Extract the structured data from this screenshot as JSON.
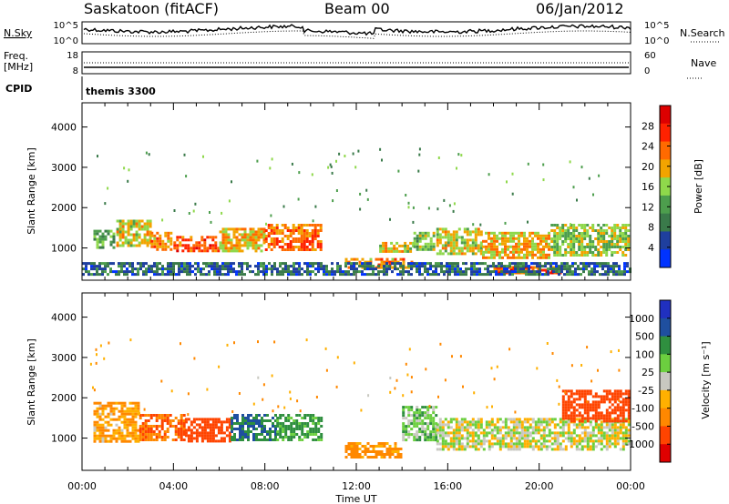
{
  "header": {
    "station": "Saskatoon (fitACF)",
    "beam": "Beam 00",
    "date": "06/Jan/2012"
  },
  "noise_panel": {
    "left_label": "N.Sky",
    "right_label": "N.Search",
    "left_ticks": [
      "10^5",
      "10^0"
    ],
    "right_ticks": [
      "10^5",
      "10^0"
    ]
  },
  "freq_panel": {
    "left_label_1": "Freq.",
    "left_label_2": "[MHz]",
    "right_label": "Nave",
    "left_ticks": [
      "18",
      "8"
    ],
    "right_ticks": [
      "60",
      "0"
    ]
  },
  "cpid_panel": {
    "label": "CPID",
    "program": "themis 3300"
  },
  "x_axis": {
    "title": "Time UT",
    "tick_labels": [
      "00:00",
      "04:00",
      "08:00",
      "12:00",
      "16:00",
      "20:00",
      "00:00"
    ]
  },
  "colors": {
    "power": [
      "#0033ff",
      "#1f3f9e",
      "#3a7a4a",
      "#4d9e4d",
      "#8fd84b",
      "#f2a400",
      "#ff6a00",
      "#ff2200",
      "#dd0000"
    ],
    "velocity": [
      "#e00000",
      "#ff4400",
      "#ff8800",
      "#ffb000",
      "#c8c8c0",
      "#6ccf3f",
      "#2f8f3f",
      "#1f4f9f",
      "#2030c0"
    ]
  },
  "chart_data": [
    {
      "type": "heatmap",
      "name": "power",
      "xlabel": "",
      "ylabel": "Slant Range [km]",
      "xlim": [
        0,
        24
      ],
      "ylim": [
        200,
        4600
      ],
      "y_ticks": [
        1000,
        2000,
        3000,
        4000
      ],
      "colorbar": {
        "label": "Power [dB]",
        "range": [
          0,
          32
        ],
        "ticks": [
          4,
          8,
          12,
          16,
          20,
          24,
          28
        ]
      },
      "bands": [
        {
          "t": [
            0.5,
            1.5
          ],
          "r": [
            950,
            1450
          ],
          "v": 12
        },
        {
          "t": [
            1.5,
            3.0
          ],
          "r": [
            1000,
            1700
          ],
          "v": 18
        },
        {
          "t": [
            3.0,
            4.0
          ],
          "r": [
            900,
            1400
          ],
          "v": 22
        },
        {
          "t": [
            4.0,
            6.0
          ],
          "r": [
            900,
            1300
          ],
          "v": 26
        },
        {
          "t": [
            6.0,
            8.0
          ],
          "r": [
            900,
            1500
          ],
          "v": 20
        },
        {
          "t": [
            8.0,
            10.5
          ],
          "r": [
            900,
            1600
          ],
          "v": 24
        },
        {
          "t": [
            11.5,
            14.5
          ],
          "r": [
            500,
            750
          ],
          "v": 22
        },
        {
          "t": [
            13.0,
            14.5
          ],
          "r": [
            850,
            1150
          ],
          "v": 18
        },
        {
          "t": [
            14.5,
            15.5
          ],
          "r": [
            900,
            1400
          ],
          "v": 14
        },
        {
          "t": [
            15.5,
            17.5
          ],
          "r": [
            800,
            1500
          ],
          "v": 18
        },
        {
          "t": [
            17.5,
            20.5
          ],
          "r": [
            700,
            1400
          ],
          "v": 20
        },
        {
          "t": [
            18.0,
            21.0
          ],
          "r": [
            350,
            550
          ],
          "v": 26
        },
        {
          "t": [
            20.5,
            24.0
          ],
          "r": [
            800,
            1600
          ],
          "v": 16
        },
        {
          "t": [
            0.0,
            24.0
          ],
          "r": [
            300,
            650
          ],
          "v": 6
        }
      ]
    },
    {
      "type": "heatmap",
      "name": "velocity",
      "xlabel": "Time UT",
      "ylabel": "Slant Range [km]",
      "xlim": [
        0,
        24
      ],
      "ylim": [
        200,
        4600
      ],
      "y_ticks": [
        1000,
        2000,
        3000,
        4000
      ],
      "colorbar": {
        "label": "Velocity [m s⁻¹]",
        "ticks": [
          "1000",
          "500",
          "100",
          "25",
          "-25",
          "-100",
          "-500",
          "-1000"
        ]
      },
      "bands": [
        {
          "t": [
            0.5,
            2.5
          ],
          "r": [
            900,
            1900
          ],
          "v": -100
        },
        {
          "t": [
            2.5,
            4.5
          ],
          "r": [
            900,
            1600
          ],
          "v": -300
        },
        {
          "t": [
            4.5,
            6.5
          ],
          "r": [
            900,
            1500
          ],
          "v": -400
        },
        {
          "t": [
            6.5,
            8.5
          ],
          "r": [
            900,
            1600
          ],
          "v": 300
        },
        {
          "t": [
            8.5,
            10.5
          ],
          "r": [
            900,
            1600
          ],
          "v": 150
        },
        {
          "t": [
            11.5,
            14.0
          ],
          "r": [
            500,
            900
          ],
          "v": -150
        },
        {
          "t": [
            14.0,
            15.5
          ],
          "r": [
            900,
            1800
          ],
          "v": 60
        },
        {
          "t": [
            15.5,
            24.0
          ],
          "r": [
            700,
            1500
          ],
          "v": 0
        },
        {
          "t": [
            21.0,
            24.0
          ],
          "r": [
            1400,
            2200
          ],
          "v": -600
        }
      ]
    }
  ]
}
